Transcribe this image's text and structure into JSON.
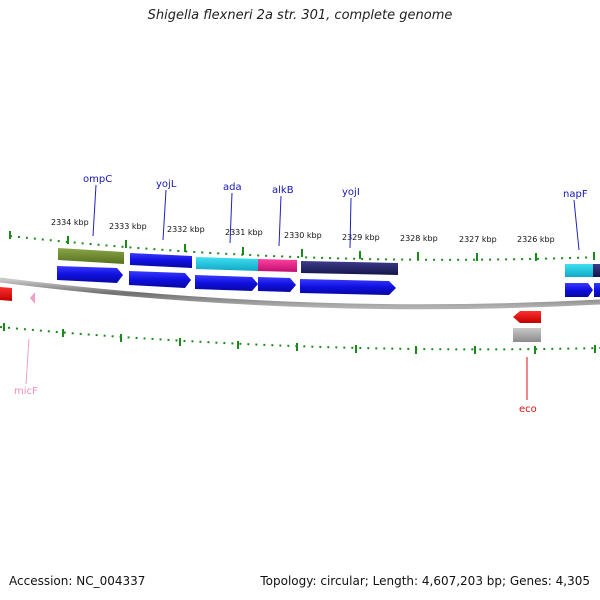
{
  "title": "Shigella flexneri 2a str. 301, complete genome",
  "footer": {
    "accession": "Accession: NC_004337",
    "stats": "Topology: circular; Length: 4,607,203 bp; Genes: 4,305"
  },
  "kbp_ticks": [
    "2334 kbp",
    "2333 kbp",
    "2332 kbp",
    "2331 kbp",
    "2330 kbp",
    "2329 kbp",
    "2328 kbp",
    "2327 kbp",
    "2326 kbp"
  ],
  "gene_labels": {
    "ompC": "ompC",
    "yojL": "yojL",
    "ada": "ada",
    "alkB": "alkB",
    "yojI": "yojI",
    "napF": "napF",
    "micF": "micF",
    "eco": "eco"
  },
  "colors": {
    "feature_blue": "#1010e0",
    "ompC_green": "#6f8a2e",
    "ada_cyan": "#16c8e0",
    "alkB_pink": "#e81e8a",
    "yojI_navy": "#242470",
    "tick_green": "#1a8a1a",
    "backbone_gray": "#8a8a8a",
    "eco_red": "#e01010",
    "micF_pink": "#f0a0c8"
  }
}
